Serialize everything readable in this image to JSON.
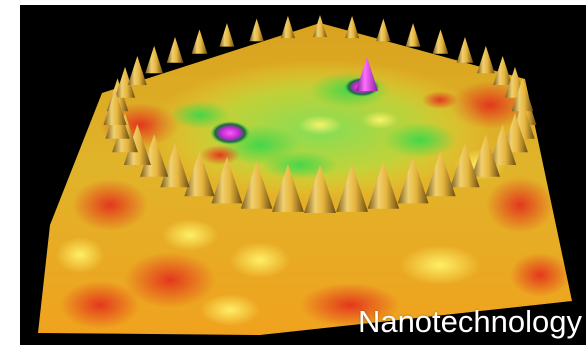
{
  "caption": "Nanotechnology",
  "colors": {
    "background": "#000000",
    "surface_orange": "#f0a21e",
    "surface_yellow": "#e6e23a",
    "surface_red": "#e23a1c",
    "surface_green": "#5fd24a",
    "peak_gold": "#e6b53c",
    "peak_magenta": "#d23ee6"
  }
}
